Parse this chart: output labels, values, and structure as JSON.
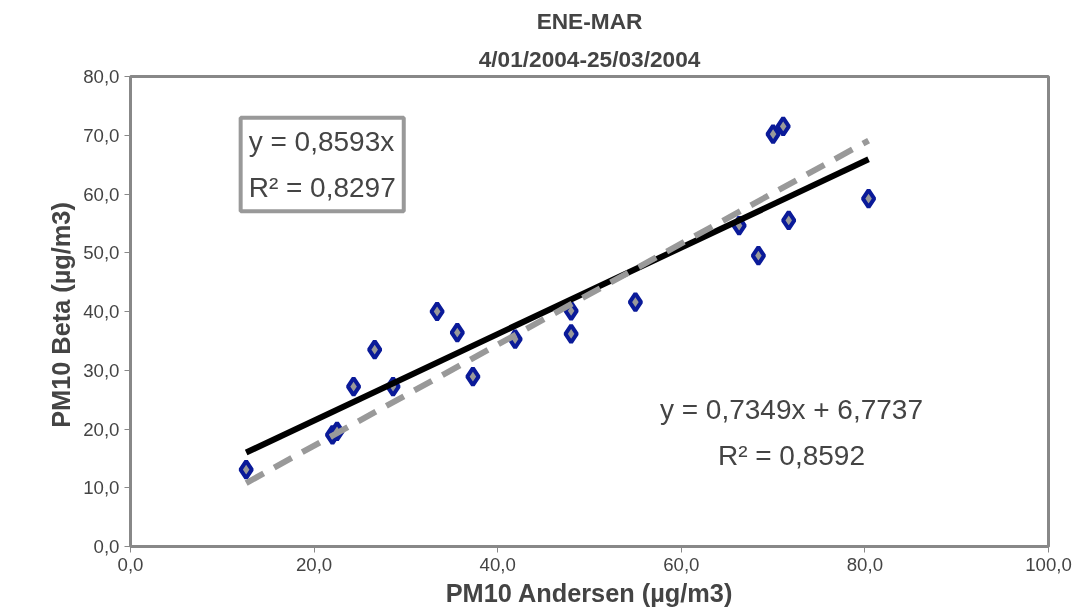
{
  "chart_data": {
    "type": "scatter",
    "title": "ENE-MAR",
    "subtitle": "4/01/2004-25/03/2004",
    "xlabel": "PM10 Andersen (µg/m3)",
    "ylabel": "PM10 Beta  (µg/m3)",
    "grid": false,
    "xlim": [
      0,
      100
    ],
    "ylim": [
      0,
      80
    ],
    "xticks": [
      {
        "value": 0,
        "label": "0,0"
      },
      {
        "value": 20,
        "label": "20,0"
      },
      {
        "value": 40,
        "label": "40,0"
      },
      {
        "value": 60,
        "label": "60,0"
      },
      {
        "value": 80,
        "label": "80,0"
      },
      {
        "value": 100,
        "label": "100,0"
      }
    ],
    "yticks": [
      {
        "value": 0,
        "label": "0,0"
      },
      {
        "value": 10,
        "label": "10,0"
      },
      {
        "value": 20,
        "label": "20,0"
      },
      {
        "value": 30,
        "label": "30,0"
      },
      {
        "value": 40,
        "label": "40,0"
      },
      {
        "value": 50,
        "label": "50,0"
      },
      {
        "value": 60,
        "label": "60,0"
      },
      {
        "value": 70,
        "label": "70,0"
      },
      {
        "value": 80,
        "label": "80,0"
      }
    ],
    "series": [
      {
        "marker": "diamond",
        "color": "#0a1a99",
        "x": [
          12.6,
          22.0,
          22.5,
          24.3,
          26.6,
          28.6,
          33.4,
          35.6,
          37.3,
          41.9,
          48.0,
          48.0,
          55.0,
          66.3,
          68.4,
          70.0,
          71.1,
          71.7,
          80.4
        ],
        "values": [
          13.1,
          19.0,
          19.6,
          27.2,
          33.5,
          27.2,
          40.0,
          36.4,
          28.9,
          35.3,
          40.1,
          36.2,
          41.6,
          54.6,
          49.5,
          70.2,
          71.5,
          55.5,
          59.2
        ]
      },
      {
        "type": "line",
        "color": "#000000",
        "marker": "none",
        "line_style": "solid",
        "x": [
          12.6,
          80.4
        ],
        "values": [
          16.0,
          65.9
        ]
      },
      {
        "type": "line",
        "color": "#999999",
        "marker": "none",
        "line_style": "dashed",
        "x": [
          12.6,
          80.4
        ],
        "values": [
          10.8,
          69.1
        ]
      }
    ],
    "annotations": [
      "y = 0,8593x\nR² = 0,8297",
      "y = 0,7349x + 6,7737\nR² = 0,8592"
    ]
  }
}
